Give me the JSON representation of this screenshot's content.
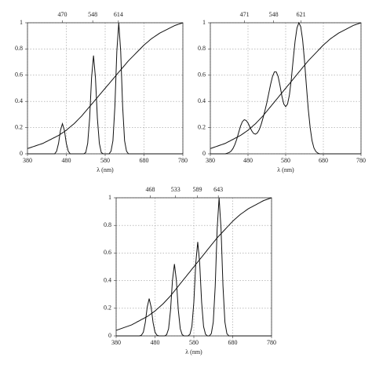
{
  "chart_data": [
    {
      "type": "line",
      "xlabel": "λ (nm)",
      "top_ticks": [
        470,
        548,
        614
      ],
      "xlim": [
        380,
        780
      ],
      "xticks": [
        380,
        480,
        580,
        680,
        780
      ],
      "ylim": [
        0,
        1
      ],
      "yticks": [
        0,
        0.2,
        0.4,
        0.6,
        0.8,
        1
      ],
      "grid": true,
      "x": [
        380,
        385,
        390,
        395,
        400,
        405,
        410,
        415,
        420,
        425,
        430,
        435,
        440,
        445,
        450,
        455,
        460,
        465,
        470,
        475,
        480,
        485,
        490,
        495,
        500,
        505,
        510,
        515,
        520,
        525,
        530,
        535,
        540,
        545,
        550,
        555,
        560,
        565,
        570,
        575,
        580,
        585,
        590,
        595,
        600,
        605,
        610,
        615,
        620,
        625,
        630,
        635,
        640,
        645,
        650,
        655,
        660,
        665,
        670,
        675,
        680,
        685,
        690,
        695,
        700,
        705,
        710,
        715,
        720,
        725,
        730,
        735,
        740,
        745,
        750,
        755,
        760,
        765,
        770,
        775,
        780
      ],
      "series": [
        {
          "color": "#111111",
          "values": [
            0,
            0,
            0,
            0,
            0,
            0,
            0,
            0,
            0,
            0,
            0,
            0,
            0,
            0,
            0,
            0.02,
            0.08,
            0.18,
            0.23,
            0.18,
            0.08,
            0.02,
            0,
            0,
            0,
            0,
            0,
            0,
            0,
            0,
            0.01,
            0.08,
            0.27,
            0.58,
            0.75,
            0.58,
            0.27,
            0.08,
            0.01,
            0,
            0,
            0,
            0,
            0.02,
            0.1,
            0.36,
            0.78,
            1.0,
            0.78,
            0.36,
            0.1,
            0.02,
            0,
            0,
            0,
            0,
            0,
            0,
            0,
            0,
            0,
            0,
            0,
            0,
            0,
            0,
            0,
            0,
            0,
            0,
            0,
            0,
            0,
            0,
            0,
            0,
            0,
            0,
            0,
            0,
            0
          ]
        },
        {
          "color": "#111111",
          "values": [
            0.04,
            0.045,
            0.05,
            0.055,
            0.06,
            0.065,
            0.07,
            0.075,
            0.08,
            0.088,
            0.095,
            0.103,
            0.11,
            0.118,
            0.125,
            0.133,
            0.14,
            0.15,
            0.16,
            0.17,
            0.18,
            0.193,
            0.205,
            0.218,
            0.23,
            0.245,
            0.26,
            0.275,
            0.29,
            0.308,
            0.325,
            0.343,
            0.36,
            0.378,
            0.395,
            0.413,
            0.43,
            0.448,
            0.465,
            0.483,
            0.5,
            0.518,
            0.535,
            0.553,
            0.57,
            0.588,
            0.605,
            0.623,
            0.64,
            0.658,
            0.675,
            0.693,
            0.71,
            0.725,
            0.74,
            0.755,
            0.77,
            0.785,
            0.8,
            0.815,
            0.83,
            0.843,
            0.855,
            0.868,
            0.88,
            0.89,
            0.9,
            0.91,
            0.92,
            0.928,
            0.935,
            0.943,
            0.95,
            0.958,
            0.965,
            0.973,
            0.98,
            0.985,
            0.99,
            0.995,
            1.0
          ]
        }
      ]
    },
    {
      "type": "line",
      "xlabel": "λ (nm)",
      "top_ticks": [
        471,
        548,
        621
      ],
      "xlim": [
        380,
        780
      ],
      "xticks": [
        380,
        480,
        580,
        680,
        780
      ],
      "ylim": [
        0,
        1
      ],
      "yticks": [
        0,
        0.2,
        0.4,
        0.6,
        0.8,
        1
      ],
      "grid": true,
      "x": [
        380,
        385,
        390,
        395,
        400,
        405,
        410,
        415,
        420,
        425,
        430,
        435,
        440,
        445,
        450,
        455,
        460,
        465,
        470,
        475,
        480,
        485,
        490,
        495,
        500,
        505,
        510,
        515,
        520,
        525,
        530,
        535,
        540,
        545,
        550,
        555,
        560,
        565,
        570,
        575,
        580,
        585,
        590,
        595,
        600,
        605,
        610,
        615,
        620,
        625,
        630,
        635,
        640,
        645,
        650,
        655,
        660,
        665,
        670,
        675,
        680,
        685,
        690,
        695,
        700,
        705,
        710,
        715,
        720,
        725,
        730,
        735,
        740,
        745,
        750,
        755,
        760,
        765,
        770,
        775,
        780
      ],
      "series": [
        {
          "color": "#111111",
          "values": [
            0,
            0,
            0,
            0,
            0,
            0,
            0,
            0,
            0,
            0.005,
            0.01,
            0.02,
            0.04,
            0.07,
            0.11,
            0.16,
            0.21,
            0.245,
            0.26,
            0.255,
            0.235,
            0.205,
            0.175,
            0.155,
            0.15,
            0.16,
            0.185,
            0.225,
            0.275,
            0.33,
            0.39,
            0.46,
            0.53,
            0.59,
            0.625,
            0.625,
            0.59,
            0.52,
            0.44,
            0.38,
            0.36,
            0.38,
            0.45,
            0.57,
            0.72,
            0.86,
            0.96,
            1.0,
            0.97,
            0.87,
            0.71,
            0.52,
            0.34,
            0.2,
            0.1,
            0.045,
            0.018,
            0.006,
            0,
            0,
            0,
            0,
            0,
            0,
            0,
            0,
            0,
            0,
            0,
            0,
            0,
            0,
            0,
            0,
            0,
            0,
            0,
            0,
            0,
            0,
            0
          ]
        },
        {
          "color": "#111111",
          "values": [
            0.04,
            0.045,
            0.05,
            0.055,
            0.06,
            0.065,
            0.07,
            0.075,
            0.08,
            0.088,
            0.095,
            0.103,
            0.11,
            0.118,
            0.125,
            0.133,
            0.14,
            0.15,
            0.16,
            0.17,
            0.18,
            0.193,
            0.205,
            0.218,
            0.23,
            0.245,
            0.26,
            0.275,
            0.29,
            0.308,
            0.325,
            0.343,
            0.36,
            0.378,
            0.395,
            0.413,
            0.43,
            0.448,
            0.465,
            0.483,
            0.5,
            0.518,
            0.535,
            0.553,
            0.57,
            0.588,
            0.605,
            0.623,
            0.64,
            0.658,
            0.675,
            0.693,
            0.71,
            0.725,
            0.74,
            0.755,
            0.77,
            0.785,
            0.8,
            0.815,
            0.83,
            0.843,
            0.855,
            0.868,
            0.88,
            0.89,
            0.9,
            0.91,
            0.92,
            0.928,
            0.935,
            0.943,
            0.95,
            0.958,
            0.965,
            0.973,
            0.98,
            0.985,
            0.99,
            0.995,
            1.0
          ]
        }
      ]
    },
    {
      "type": "line",
      "xlabel": "λ (nm)",
      "top_ticks": [
        468,
        533,
        589,
        643
      ],
      "xlim": [
        380,
        780
      ],
      "xticks": [
        380,
        480,
        580,
        680,
        780
      ],
      "ylim": [
        0,
        1
      ],
      "yticks": [
        0,
        0.2,
        0.4,
        0.6,
        0.8,
        1
      ],
      "grid": true,
      "x": [
        380,
        385,
        390,
        395,
        400,
        405,
        410,
        415,
        420,
        425,
        430,
        435,
        440,
        445,
        450,
        455,
        460,
        465,
        470,
        475,
        480,
        485,
        490,
        495,
        500,
        505,
        510,
        515,
        520,
        525,
        530,
        535,
        540,
        545,
        550,
        555,
        560,
        565,
        570,
        575,
        580,
        585,
        590,
        595,
        600,
        605,
        610,
        615,
        620,
        625,
        630,
        635,
        640,
        645,
        650,
        655,
        660,
        665,
        670,
        675,
        680,
        685,
        690,
        695,
        700,
        705,
        710,
        715,
        720,
        725,
        730,
        735,
        740,
        745,
        750,
        755,
        760,
        765,
        770,
        775,
        780
      ],
      "series": [
        {
          "color": "#111111",
          "values": [
            0,
            0,
            0,
            0,
            0,
            0,
            0,
            0,
            0,
            0,
            0,
            0,
            0,
            0.005,
            0.027,
            0.097,
            0.209,
            0.27,
            0.209,
            0.097,
            0.027,
            0.005,
            0,
            0,
            0,
            0,
            0.009,
            0.052,
            0.187,
            0.403,
            0.52,
            0.403,
            0.187,
            0.052,
            0.009,
            0,
            0,
            0,
            0.012,
            0.068,
            0.245,
            0.527,
            0.68,
            0.527,
            0.245,
            0.068,
            0.012,
            0,
            0,
            0.017,
            0.1,
            0.36,
            0.775,
            1.0,
            0.775,
            0.36,
            0.1,
            0.017,
            0,
            0,
            0,
            0,
            0,
            0,
            0,
            0,
            0,
            0,
            0,
            0,
            0,
            0,
            0,
            0,
            0,
            0,
            0,
            0,
            0,
            0,
            0
          ]
        },
        {
          "color": "#111111",
          "values": [
            0.04,
            0.045,
            0.05,
            0.055,
            0.06,
            0.065,
            0.07,
            0.075,
            0.08,
            0.088,
            0.095,
            0.103,
            0.11,
            0.118,
            0.125,
            0.133,
            0.14,
            0.15,
            0.16,
            0.17,
            0.18,
            0.193,
            0.205,
            0.218,
            0.23,
            0.245,
            0.26,
            0.275,
            0.29,
            0.308,
            0.325,
            0.343,
            0.36,
            0.378,
            0.395,
            0.413,
            0.43,
            0.448,
            0.465,
            0.483,
            0.5,
            0.518,
            0.535,
            0.553,
            0.57,
            0.588,
            0.605,
            0.623,
            0.64,
            0.658,
            0.675,
            0.693,
            0.71,
            0.725,
            0.74,
            0.755,
            0.77,
            0.785,
            0.8,
            0.815,
            0.83,
            0.843,
            0.855,
            0.868,
            0.88,
            0.89,
            0.9,
            0.91,
            0.92,
            0.928,
            0.935,
            0.943,
            0.95,
            0.958,
            0.965,
            0.973,
            0.98,
            0.985,
            0.99,
            0.995,
            1.0
          ]
        }
      ]
    }
  ]
}
